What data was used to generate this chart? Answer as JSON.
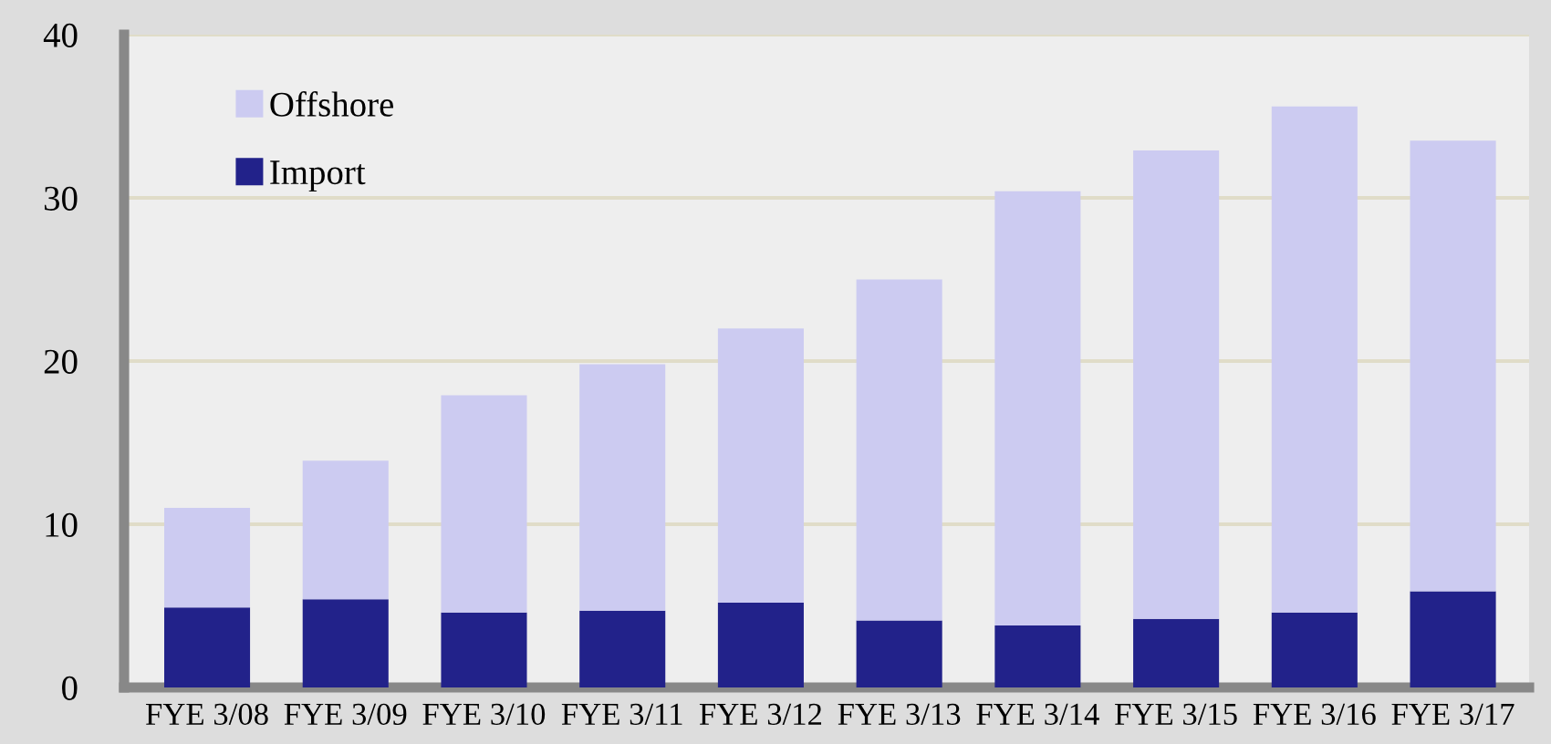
{
  "chart_data": {
    "type": "bar",
    "stacked": true,
    "categories": [
      "FYE 3/08",
      "FYE 3/09",
      "FYE 3/10",
      "FYE 3/11",
      "FYE 3/12",
      "FYE 3/13",
      "FYE 3/14",
      "FYE 3/15",
      "FYE 3/16",
      "FYE 3/17"
    ],
    "series": [
      {
        "name": "Import",
        "color": "#22228a",
        "values": [
          4.9,
          5.4,
          4.6,
          4.7,
          5.2,
          4.1,
          3.8,
          4.2,
          4.6,
          5.9
        ]
      },
      {
        "name": "Offshore",
        "color": "#cccbf1",
        "values": [
          6.1,
          8.5,
          13.3,
          15.1,
          16.8,
          20.9,
          26.6,
          28.7,
          31.0,
          27.6
        ]
      }
    ],
    "ylim": [
      0,
      40
    ],
    "yticks": [
      0,
      10,
      20,
      30,
      40
    ],
    "grid": "y",
    "legend": "top left"
  }
}
